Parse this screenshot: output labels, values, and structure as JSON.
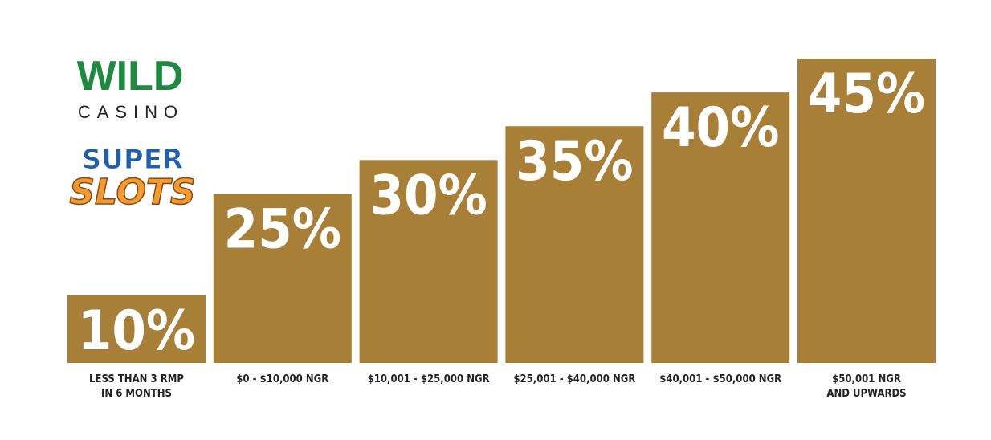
{
  "brand": {
    "name": "WILD",
    "subname": "CASINO",
    "slots_top": "SUPER",
    "slots_bottom": "SLOTS"
  },
  "chart_data": {
    "type": "bar",
    "color": "#a77f37",
    "categories": [
      "LESS THAN 3 RMP\nIN 6 MONTHS",
      "$0 - $10,000 NGR",
      "$10,001 - $25,000 NGR",
      "$25,001 - $40,000 NGR",
      "$40,001 - $50,000 NGR",
      "$50,001 NGR\nAND UPWARDS"
    ],
    "values": [
      10,
      25,
      30,
      35,
      40,
      45
    ],
    "value_labels": [
      "10%",
      "25%",
      "30%",
      "35%",
      "40%",
      "45%"
    ]
  }
}
